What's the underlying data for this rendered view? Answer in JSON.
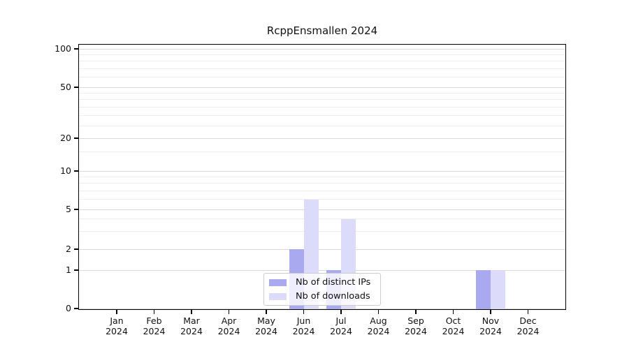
{
  "title": "RcppEnsmallen 2024",
  "chart_data": {
    "type": "bar",
    "title": "RcppEnsmallen 2024",
    "xlabel": "",
    "ylabel": "",
    "year": "2024",
    "categories": [
      "Jan",
      "Feb",
      "Mar",
      "Apr",
      "May",
      "Jun",
      "Jul",
      "Aug",
      "Sep",
      "Oct",
      "Nov",
      "Dec"
    ],
    "series": [
      {
        "name": "Nb of distinct IPs",
        "color": "#a9a9f0",
        "values": [
          0,
          0,
          0,
          0,
          0,
          2,
          1,
          0,
          0,
          0,
          1,
          0
        ]
      },
      {
        "name": "Nb of downloads",
        "color": "#dcdcfa",
        "values": [
          0,
          0,
          0,
          0,
          0,
          6,
          4,
          0,
          0,
          0,
          1,
          0
        ]
      }
    ],
    "y_axis": {
      "scale": "log-like",
      "major_ticks": [
        0,
        1,
        2,
        5,
        10,
        20,
        50,
        100
      ],
      "minor_ticks": [
        3,
        4,
        6,
        7,
        8,
        9,
        15,
        25,
        30,
        35,
        40,
        45,
        60,
        70,
        80,
        90
      ],
      "ylim": [
        0,
        107
      ]
    },
    "grid": true,
    "legend_position": "lower center"
  },
  "legend": {
    "items": [
      {
        "label": "Nb of distinct IPs",
        "color": "#a9a9f0"
      },
      {
        "label": "Nb of downloads",
        "color": "#dcdcfa"
      }
    ]
  },
  "colors": {
    "distinct_ips_bar": "#a9a9f0",
    "downloads_bar": "#dcdcfa",
    "grid_major": "#d9d9d9",
    "grid_minor": "#eeeeee",
    "axis": "#000000",
    "legend_border": "#cccccc"
  }
}
